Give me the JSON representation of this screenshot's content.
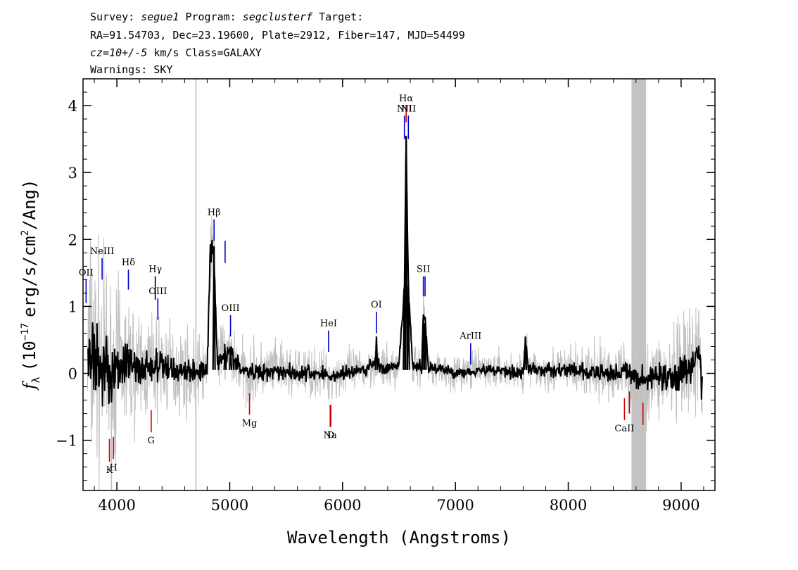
{
  "header": {
    "line1": {
      "survey_label": "Survey:",
      "survey": "segue1",
      "program_label": "Program:",
      "program": "segclusterf",
      "target_label": "Target:"
    },
    "line2": "RA=91.54703, Dec=23.19600, Plate=2912, Fiber=147, MJD=54499",
    "line3": {
      "cz": "cz=10+/-5",
      "rest": "km/s Class=GALAXY"
    },
    "line4": "Warnings: SKY"
  },
  "chart_data": {
    "type": "line",
    "xlabel": "Wavelength (Angstroms)",
    "ylabel": {
      "symbol": "f",
      "subscript": "λ",
      "prefix": "(10",
      "exponent": "−17",
      "mid": "erg/s/cm",
      "exp2": "2",
      "suffix": "/Ang)"
    },
    "xlim": [
      3700,
      9300
    ],
    "ylim": [
      -1.75,
      4.4
    ],
    "x_ticks": [
      4000,
      5000,
      6000,
      7000,
      8000,
      9000
    ],
    "x_tick_labels": [
      "4000",
      "5000",
      "6000",
      "7000",
      "8000",
      "9000"
    ],
    "y_ticks": [
      -1,
      0,
      1,
      2,
      3,
      4
    ],
    "y_tick_labels": [
      "−1",
      "0",
      "1",
      "2",
      "3",
      "4"
    ],
    "series": [
      {
        "role": "spectrum",
        "color": "#000000",
        "x": [
          3800,
          3850,
          3900,
          3950,
          4000,
          4100,
          4200,
          4300,
          4400,
          4500,
          4600,
          4700,
          4800,
          4830,
          4861,
          4890,
          4959,
          5007,
          5100,
          5200,
          5400,
          5600,
          5800,
          5900,
          6000,
          6200,
          6300,
          6350,
          6500,
          6548,
          6563,
          6583,
          6620,
          6700,
          6716,
          6731,
          6760,
          6900,
          7000,
          7200,
          7400,
          7600,
          7620,
          7650,
          7800,
          8000,
          8200,
          8400,
          8500,
          8560,
          8700,
          8800,
          8900,
          9000,
          9100,
          9150,
          9190
        ],
        "y": [
          0.3,
          0.1,
          0.2,
          -0.1,
          0.1,
          0.15,
          0.05,
          0.1,
          0.1,
          0.05,
          0.05,
          0.0,
          0.1,
          1.9,
          1.75,
          0.2,
          0.3,
          0.3,
          0.05,
          0.0,
          0.05,
          0.0,
          0.0,
          -0.05,
          0.0,
          0.05,
          0.2,
          0.05,
          0.1,
          1.3,
          3.55,
          1.3,
          0.1,
          0.1,
          0.9,
          0.8,
          0.1,
          0.05,
          0.0,
          0.05,
          0.05,
          0.0,
          0.5,
          0.05,
          0.05,
          0.05,
          0.0,
          0.0,
          0.05,
          -0.05,
          -0.1,
          0.0,
          -0.1,
          0.0,
          0.1,
          0.3,
          -0.1
        ]
      },
      {
        "role": "error",
        "color": "#c0c0c0",
        "x": [
          3750,
          3900,
          4100,
          4300,
          4500,
          4700,
          5000,
          5400,
          5800,
          6200,
          6600,
          7000,
          7400,
          7800,
          8200,
          8600,
          8900,
          9190
        ],
        "y": [
          1.2,
          0.9,
          0.6,
          0.5,
          0.4,
          0.35,
          0.3,
          0.25,
          0.22,
          0.2,
          0.18,
          0.16,
          0.17,
          0.2,
          0.25,
          0.3,
          0.45,
          0.55
        ]
      }
    ],
    "masked_region": [
      8560,
      8690
    ],
    "vertical_line_x": 4700,
    "emission_lines": [
      {
        "label": "OII",
        "x": 3727,
        "y": [
          1.05,
          1.4
        ],
        "color": "#0000cc"
      },
      {
        "label": "NeIII",
        "x": 3869,
        "y": [
          1.4,
          1.72
        ],
        "color": "#0000cc"
      },
      {
        "label": "Hδ",
        "x": 4102,
        "y": [
          1.25,
          1.55
        ],
        "color": "#0000cc"
      },
      {
        "label": "Hγ",
        "x": 4340,
        "y": [
          1.1,
          1.45
        ],
        "color": "#000000"
      },
      {
        "label": "OIII",
        "x": 4363,
        "y": [
          0.8,
          1.12
        ],
        "color": "#0000cc"
      },
      {
        "label": "Hβ",
        "x": 4861,
        "y": [
          1.98,
          2.3
        ],
        "color": "#0000cc"
      },
      {
        "label": "",
        "x": 4959,
        "y": [
          1.65,
          1.98
        ],
        "color": "#0000cc"
      },
      {
        "label": "OIII",
        "x": 5007,
        "y": [
          0.55,
          0.87
        ],
        "color": "#0000cc"
      },
      {
        "label": "HeI",
        "x": 5876,
        "y": [
          0.32,
          0.64
        ],
        "color": "#0000cc"
      },
      {
        "label": "OI",
        "x": 6300,
        "y": [
          0.6,
          0.92
        ],
        "color": "#0000cc"
      },
      {
        "label": "NII",
        "x": 6548,
        "y": [
          3.5,
          3.85
        ],
        "color": "#0000cc"
      },
      {
        "label": "Hα",
        "x": 6563,
        "y": [
          3.75,
          4.0
        ],
        "color": "#cc0000"
      },
      {
        "label": "NII",
        "x": 6583,
        "y": [
          3.5,
          3.85
        ],
        "color": "#0000cc"
      },
      {
        "label": "SII",
        "x": 6716,
        "y": [
          1.15,
          1.45
        ],
        "color": "#0000cc"
      },
      {
        "label": "",
        "x": 6731,
        "y": [
          1.15,
          1.45
        ],
        "color": "#0000cc"
      },
      {
        "label": "ArIII",
        "x": 7135,
        "y": [
          0.13,
          0.45
        ],
        "color": "#0000cc"
      }
    ],
    "absorption_lines": [
      {
        "label": "K",
        "x": 3934,
        "y": [
          -1.32,
          -0.98
        ],
        "color": "#cc0000"
      },
      {
        "label": "H",
        "x": 3969,
        "y": [
          -1.28,
          -0.95
        ],
        "color": "#cc0000"
      },
      {
        "label": "G",
        "x": 4304,
        "y": [
          -0.88,
          -0.55
        ],
        "color": "#cc0000"
      },
      {
        "label": "Mg",
        "x": 5175,
        "y": [
          -0.62,
          -0.3
        ],
        "color": "#cc0000"
      },
      {
        "label": "Na",
        "x": 5890,
        "y": [
          -0.8,
          -0.47
        ],
        "color": "#cc0000"
      },
      {
        "label": "D",
        "x": 5896,
        "y": [
          -0.8,
          -0.47
        ],
        "color": "#cc0000"
      },
      {
        "label": "CaII",
        "x": 8498,
        "y": [
          -0.7,
          -0.37
        ],
        "color": "#cc0000"
      },
      {
        "label": "",
        "x": 8542,
        "y": [
          -0.6,
          -0.27
        ],
        "color": "#cc0000"
      },
      {
        "label": "",
        "x": 8662,
        "y": [
          -0.77,
          -0.44
        ],
        "color": "#cc0000"
      }
    ]
  }
}
